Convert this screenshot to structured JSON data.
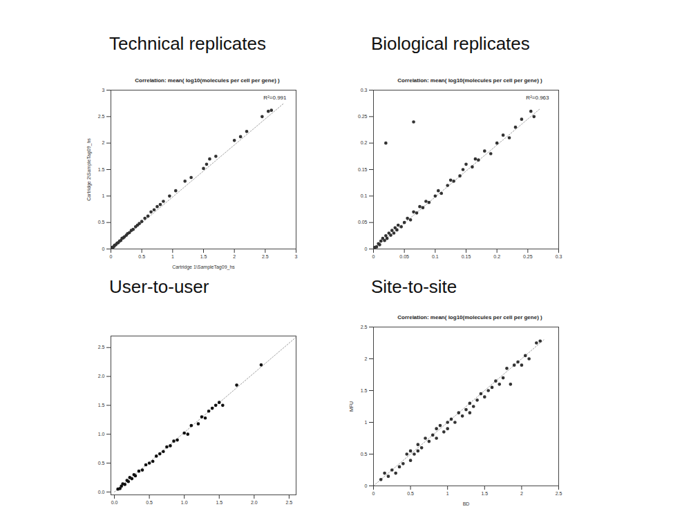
{
  "chart_data": [
    {
      "type": "scatter",
      "heading": "Technical replicates",
      "title": "Correlation: mean( log10(molecules per cell per gene) )",
      "x_label": "Cartridge 1\\SampleTag09_hs",
      "y_label": "Cartridge 2\\SampleTag09_hs",
      "annotation": "R²=0.991",
      "color": "#333333",
      "marker": "circle",
      "xlim": [
        0,
        3
      ],
      "ylim": [
        0,
        3
      ],
      "xticks": [
        0,
        0.5,
        1,
        1.5,
        2,
        2.5,
        3
      ],
      "yticks": [
        0,
        0.5,
        1,
        1.5,
        2,
        2.5,
        3
      ],
      "x": [
        0.01,
        0.02,
        0.03,
        0.05,
        0.06,
        0.08,
        0.1,
        0.12,
        0.14,
        0.16,
        0.18,
        0.2,
        0.22,
        0.25,
        0.27,
        0.3,
        0.33,
        0.36,
        0.4,
        0.43,
        0.46,
        0.5,
        0.55,
        0.6,
        0.65,
        0.7,
        0.75,
        0.8,
        0.85,
        0.95,
        1.05,
        1.2,
        1.3,
        1.5,
        1.55,
        1.6,
        1.7,
        2.0,
        2.1,
        2.2,
        2.45,
        2.55,
        2.6
      ],
      "y": [
        0.01,
        0.03,
        0.02,
        0.05,
        0.07,
        0.08,
        0.11,
        0.12,
        0.15,
        0.16,
        0.2,
        0.21,
        0.23,
        0.26,
        0.29,
        0.31,
        0.35,
        0.37,
        0.42,
        0.45,
        0.48,
        0.52,
        0.58,
        0.62,
        0.7,
        0.74,
        0.8,
        0.84,
        0.9,
        1.0,
        1.1,
        1.28,
        1.35,
        1.52,
        1.6,
        1.7,
        1.75,
        2.05,
        2.12,
        2.22,
        2.5,
        2.6,
        2.62
      ],
      "fit_line": {
        "x": [
          0,
          2.8
        ],
        "y": [
          0,
          2.75
        ]
      }
    },
    {
      "type": "scatter",
      "heading": "Biological replicates",
      "title": "Correlation: mean( log10(molecules per cell per gene) )",
      "annotation": "R²=0.963",
      "color": "#333333",
      "marker": "circle",
      "xlim": [
        0,
        0.3
      ],
      "ylim": [
        0,
        0.3
      ],
      "xticks": [
        0,
        0.05,
        0.1,
        0.15,
        0.2,
        0.25,
        0.3
      ],
      "yticks": [
        0,
        0.05,
        0.1,
        0.15,
        0.2,
        0.25,
        0.3
      ],
      "x": [
        0.002,
        0.005,
        0.008,
        0.01,
        0.012,
        0.015,
        0.018,
        0.02,
        0.022,
        0.025,
        0.028,
        0.03,
        0.033,
        0.035,
        0.038,
        0.04,
        0.045,
        0.05,
        0.055,
        0.06,
        0.065,
        0.07,
        0.075,
        0.08,
        0.085,
        0.09,
        0.1,
        0.105,
        0.11,
        0.12,
        0.125,
        0.13,
        0.14,
        0.145,
        0.15,
        0.16,
        0.165,
        0.17,
        0.18,
        0.19,
        0.2,
        0.21,
        0.22,
        0.23,
        0.24,
        0.255,
        0.26,
        0.02,
        0.065
      ],
      "y": [
        0.003,
        0.004,
        0.01,
        0.008,
        0.015,
        0.02,
        0.016,
        0.025,
        0.02,
        0.03,
        0.026,
        0.035,
        0.03,
        0.04,
        0.036,
        0.045,
        0.042,
        0.05,
        0.058,
        0.055,
        0.07,
        0.068,
        0.08,
        0.078,
        0.09,
        0.088,
        0.1,
        0.11,
        0.105,
        0.12,
        0.13,
        0.128,
        0.138,
        0.15,
        0.16,
        0.155,
        0.17,
        0.168,
        0.185,
        0.18,
        0.2,
        0.215,
        0.21,
        0.23,
        0.245,
        0.26,
        0.25,
        0.2,
        0.24
      ],
      "fit_line": {
        "x": [
          0,
          0.27
        ],
        "y": [
          0,
          0.265
        ]
      }
    },
    {
      "type": "scatter",
      "heading": "User-to-user",
      "color": "#111111",
      "marker": "circle",
      "xlim": [
        -0.05,
        2.6
      ],
      "ylim": [
        -0.05,
        2.7
      ],
      "xticks": [
        {
          "value": 0,
          "label": "0.0"
        },
        {
          "value": 0.5,
          "label": "0.5"
        },
        {
          "value": 1,
          "label": "1.0"
        },
        {
          "value": 1.5,
          "label": "1.5"
        },
        {
          "value": 2,
          "label": "2.0"
        },
        {
          "value": 2.5,
          "label": "2.5"
        }
      ],
      "yticks": [
        {
          "value": 0,
          "label": "0.0"
        },
        {
          "value": 0.5,
          "label": "0.5"
        },
        {
          "value": 1,
          "label": "1.0"
        },
        {
          "value": 1.5,
          "label": "1.5"
        },
        {
          "value": 2,
          "label": "2.0"
        },
        {
          "value": 2.5,
          "label": "2.5"
        }
      ],
      "x": [
        0.05,
        0.08,
        0.1,
        0.12,
        0.15,
        0.18,
        0.2,
        0.22,
        0.25,
        0.28,
        0.3,
        0.35,
        0.4,
        0.45,
        0.5,
        0.55,
        0.6,
        0.65,
        0.7,
        0.75,
        0.8,
        0.85,
        0.9,
        1.0,
        1.05,
        1.1,
        1.2,
        1.25,
        1.3,
        1.35,
        1.4,
        1.45,
        1.5,
        1.55,
        1.75,
        2.1
      ],
      "y": [
        0.05,
        0.06,
        0.1,
        0.14,
        0.13,
        0.2,
        0.18,
        0.25,
        0.23,
        0.3,
        0.28,
        0.36,
        0.38,
        0.47,
        0.5,
        0.53,
        0.62,
        0.66,
        0.7,
        0.78,
        0.8,
        0.88,
        0.9,
        1.02,
        1.0,
        1.15,
        1.18,
        1.3,
        1.28,
        1.4,
        1.45,
        1.5,
        1.55,
        1.5,
        1.85,
        2.2
      ],
      "fit_line": {
        "x": [
          0,
          2.6
        ],
        "y": [
          0,
          2.68
        ]
      }
    },
    {
      "type": "scatter",
      "heading": "Site-to-site",
      "title": "Correlation: mean( log10(molecules per cell per gene) )",
      "x_label": "BD",
      "y_label": "MFU",
      "color": "#333333",
      "marker": "circle",
      "xlim": [
        0,
        2.5
      ],
      "ylim": [
        0,
        2.5
      ],
      "xticks": [
        0,
        0.5,
        1,
        1.5,
        2,
        2.5
      ],
      "yticks": [
        0,
        0.5,
        1,
        1.5,
        2,
        2.5
      ],
      "x": [
        0.1,
        0.15,
        0.2,
        0.25,
        0.3,
        0.35,
        0.4,
        0.45,
        0.5,
        0.5,
        0.55,
        0.6,
        0.6,
        0.65,
        0.7,
        0.75,
        0.8,
        0.85,
        0.85,
        0.9,
        0.95,
        1.0,
        1.0,
        1.05,
        1.1,
        1.15,
        1.2,
        1.25,
        1.3,
        1.3,
        1.35,
        1.4,
        1.45,
        1.5,
        1.55,
        1.6,
        1.65,
        1.7,
        1.75,
        1.8,
        1.85,
        1.9,
        1.95,
        2.0,
        2.05,
        2.1,
        2.2,
        2.25
      ],
      "y": [
        0.1,
        0.2,
        0.15,
        0.25,
        0.2,
        0.3,
        0.35,
        0.5,
        0.4,
        0.55,
        0.5,
        0.65,
        0.55,
        0.6,
        0.75,
        0.7,
        0.8,
        0.75,
        0.9,
        0.95,
        0.85,
        1.0,
        0.9,
        1.05,
        1.0,
        1.15,
        1.1,
        1.2,
        1.3,
        1.15,
        1.25,
        1.35,
        1.45,
        1.4,
        1.5,
        1.55,
        1.65,
        1.6,
        1.7,
        1.85,
        1.6,
        1.9,
        1.95,
        1.9,
        2.05,
        2.0,
        2.25,
        2.28
      ],
      "fit_line": {
        "x": [
          0,
          2.3
        ],
        "y": [
          0,
          2.3
        ]
      }
    }
  ]
}
